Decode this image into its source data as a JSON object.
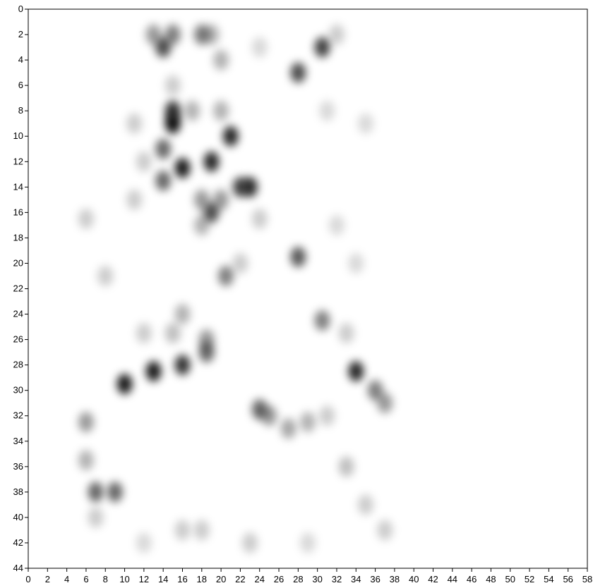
{
  "chart_data": {
    "type": "heatmap",
    "x": [
      13,
      15,
      14,
      18,
      19,
      20,
      24,
      30.5,
      32,
      28,
      15,
      15,
      21,
      14,
      16,
      19,
      14,
      23,
      22,
      19,
      18,
      20,
      18,
      17,
      20,
      11,
      15,
      28,
      20.5,
      30.5,
      33,
      18.5,
      18.5,
      16,
      13,
      10,
      34,
      36,
      37,
      24,
      25,
      27,
      29,
      31,
      6,
      6,
      7,
      9,
      7,
      16,
      15,
      12,
      33,
      35,
      16,
      18,
      12,
      23,
      29,
      37,
      8,
      6,
      11,
      12,
      24,
      32,
      35,
      31,
      22,
      34
    ],
    "y": [
      2,
      2,
      3,
      2,
      2,
      4,
      3,
      3,
      2,
      5,
      9,
      8,
      10,
      11,
      12.5,
      12,
      13.5,
      14,
      14,
      16,
      15,
      15,
      17,
      8,
      8,
      9,
      6,
      19.5,
      21,
      24.5,
      25.5,
      27,
      26,
      28,
      28.5,
      29.5,
      28.5,
      30,
      31,
      31.5,
      32,
      33,
      32.5,
      32,
      32.5,
      35.5,
      38,
      38,
      40,
      24,
      25.5,
      25.5,
      36,
      39,
      41,
      41,
      42,
      42,
      42,
      41,
      21,
      16.5,
      15,
      12,
      16.5,
      17,
      9,
      8,
      20,
      20
    ],
    "values": [
      0.4,
      0.5,
      0.7,
      0.5,
      0.3,
      0.3,
      0.15,
      0.75,
      0.2,
      0.7,
      0.95,
      0.8,
      0.85,
      0.6,
      0.9,
      0.85,
      0.6,
      0.8,
      0.7,
      0.7,
      0.4,
      0.4,
      0.3,
      0.3,
      0.3,
      0.2,
      0.2,
      0.65,
      0.5,
      0.5,
      0.2,
      0.6,
      0.4,
      0.8,
      0.9,
      0.9,
      0.85,
      0.5,
      0.4,
      0.6,
      0.4,
      0.35,
      0.3,
      0.2,
      0.4,
      0.3,
      0.6,
      0.6,
      0.2,
      0.3,
      0.25,
      0.2,
      0.25,
      0.2,
      0.2,
      0.2,
      0.15,
      0.2,
      0.15,
      0.2,
      0.2,
      0.2,
      0.2,
      0.2,
      0.2,
      0.15,
      0.15,
      0.15,
      0.2,
      0.15
    ],
    "color": "#000000",
    "xlim": [
      0,
      58
    ],
    "ylim": [
      0,
      44
    ],
    "y_inverted": true,
    "xticks": [
      0,
      2,
      4,
      6,
      8,
      10,
      12,
      14,
      16,
      18,
      20,
      22,
      24,
      26,
      28,
      30,
      32,
      34,
      36,
      38,
      40,
      42,
      44,
      46,
      48,
      50,
      52,
      54,
      56,
      58
    ],
    "yticks": [
      0,
      2,
      4,
      6,
      8,
      10,
      12,
      14,
      16,
      18,
      20,
      22,
      24,
      26,
      28,
      30,
      32,
      34,
      36,
      38,
      40,
      42,
      44
    ]
  }
}
